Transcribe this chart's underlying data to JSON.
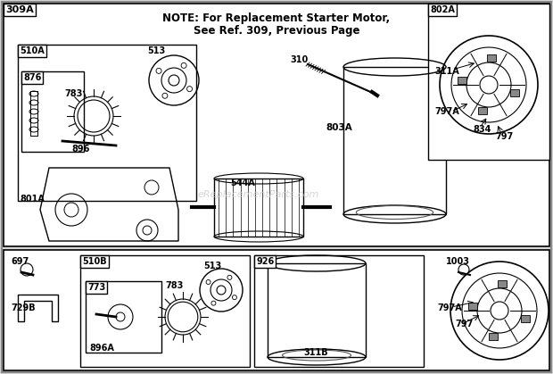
{
  "bg_color": "#d8d8d8",
  "content_bg": "#ffffff",
  "note_line1": "NOTE: For Replacement Starter Motor,",
  "note_line2": "See Ref. 309, Previous Page",
  "watermark": "eReplacementParts.com",
  "fig_w": 6.2,
  "fig_h": 4.19,
  "dpi": 100
}
